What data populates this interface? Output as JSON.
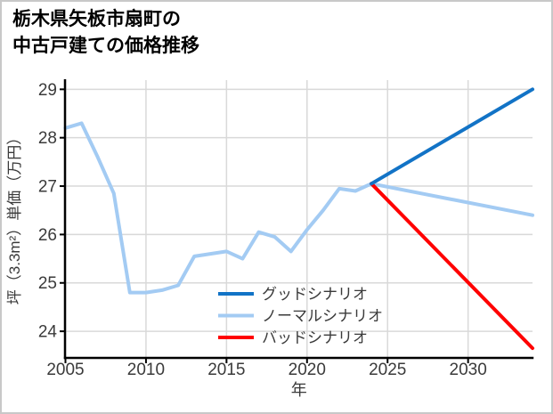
{
  "card": {
    "title_lines": [
      "栃木県矢板市扇町の",
      "中古戸建ての価格推移"
    ]
  },
  "chart_data": {
    "type": "line",
    "title": "栃木県矢板市扇町の中古戸建ての価格推移",
    "xlabel": "年",
    "ylabel": "坪（3.3m²）単価（万円）",
    "xlim": [
      2005,
      2034
    ],
    "ylim": [
      23.45,
      29.19
    ],
    "xticks": [
      2005,
      2010,
      2015,
      2020,
      2025,
      2030
    ],
    "yticks": [
      24,
      25,
      26,
      27,
      28,
      29
    ],
    "grid": true,
    "legend_position": "lower-center",
    "colors": {
      "good": "#1273c6",
      "normal": "#a3cbf3",
      "bad": "#ff0000",
      "grid": "#d9d9d9",
      "axis": "#000000",
      "tick_text": "#3a3a3a",
      "title_text": "#000000"
    },
    "history": {
      "id": "history",
      "color": "#a3cbf3",
      "x": [
        2005,
        2006,
        2007,
        2008,
        2009,
        2010,
        2011,
        2012,
        2013,
        2014,
        2015,
        2016,
        2017,
        2018,
        2019,
        2020,
        2021,
        2022,
        2023,
        2024
      ],
      "y": [
        28.2,
        28.3,
        27.6,
        26.85,
        24.8,
        24.8,
        24.85,
        24.95,
        25.55,
        25.6,
        25.65,
        25.5,
        26.05,
        25.95,
        25.65,
        26.1,
        26.5,
        26.95,
        26.9,
        27.05
      ]
    },
    "series": [
      {
        "id": "good",
        "label": "グッドシナリオ",
        "color": "#1273c6",
        "x": [
          2024,
          2034
        ],
        "y": [
          27.05,
          29.0
        ]
      },
      {
        "id": "normal",
        "label": "ノーマルシナリオ",
        "color": "#a3cbf3",
        "x": [
          2024,
          2034
        ],
        "y": [
          27.05,
          26.4
        ]
      },
      {
        "id": "bad",
        "label": "バッドシナリオ",
        "color": "#ff0000",
        "x": [
          2024,
          2034
        ],
        "y": [
          27.05,
          23.65
        ]
      }
    ]
  }
}
